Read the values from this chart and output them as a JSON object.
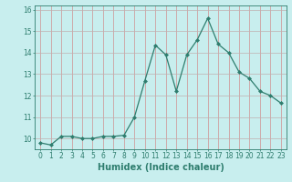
{
  "xlabel": "Humidex (Indice chaleur)",
  "ylabel": "",
  "x_values": [
    0,
    1,
    2,
    3,
    4,
    5,
    6,
    7,
    8,
    9,
    10,
    11,
    12,
    13,
    14,
    15,
    16,
    17,
    18,
    19,
    20,
    21,
    22,
    23
  ],
  "y_values": [
    9.8,
    9.7,
    10.1,
    10.1,
    10.0,
    10.0,
    10.1,
    10.1,
    10.15,
    11.0,
    12.7,
    14.35,
    13.9,
    12.2,
    13.9,
    14.6,
    15.6,
    14.4,
    14.0,
    13.1,
    12.8,
    12.2,
    12.0,
    11.65
  ],
  "xlim": [
    -0.5,
    23.5
  ],
  "ylim": [
    9.5,
    16.2
  ],
  "yticks": [
    10,
    11,
    12,
    13,
    14,
    15,
    16
  ],
  "xticks": [
    0,
    1,
    2,
    3,
    4,
    5,
    6,
    7,
    8,
    9,
    10,
    11,
    12,
    13,
    14,
    15,
    16,
    17,
    18,
    19,
    20,
    21,
    22,
    23
  ],
  "line_color": "#2e7d6e",
  "marker": "D",
  "marker_size": 2.0,
  "background_color": "#c8eeee",
  "grid_color_h": "#c0b0b0",
  "grid_color_v": "#d09090",
  "axis_color": "#2e7d6e",
  "xlabel_fontsize": 7,
  "tick_fontsize": 5.5,
  "linewidth": 0.9
}
